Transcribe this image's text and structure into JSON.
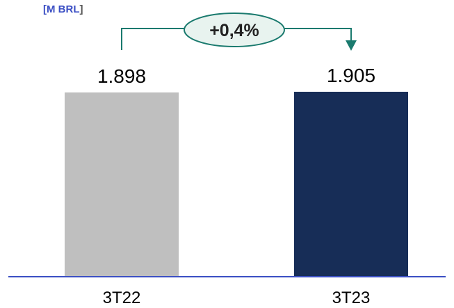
{
  "chart_data": {
    "type": "bar",
    "unit_label_open": "[M BRL",
    "unit_label_close": "]",
    "categories": [
      "3T22",
      "3T23"
    ],
    "values": [
      1898,
      1905
    ],
    "value_labels": [
      "1.898",
      "1.905"
    ],
    "bar_colors": [
      "#bfbfbf",
      "#172d57"
    ],
    "ylim": [
      0,
      1950
    ],
    "change_annotation": {
      "label": "+0,4%",
      "from": "3T22",
      "to": "3T23",
      "color": "#1a7a6e"
    },
    "axis_color": "#3b4fc4",
    "unit_label_color": "#3b4fc4",
    "grid": false
  }
}
